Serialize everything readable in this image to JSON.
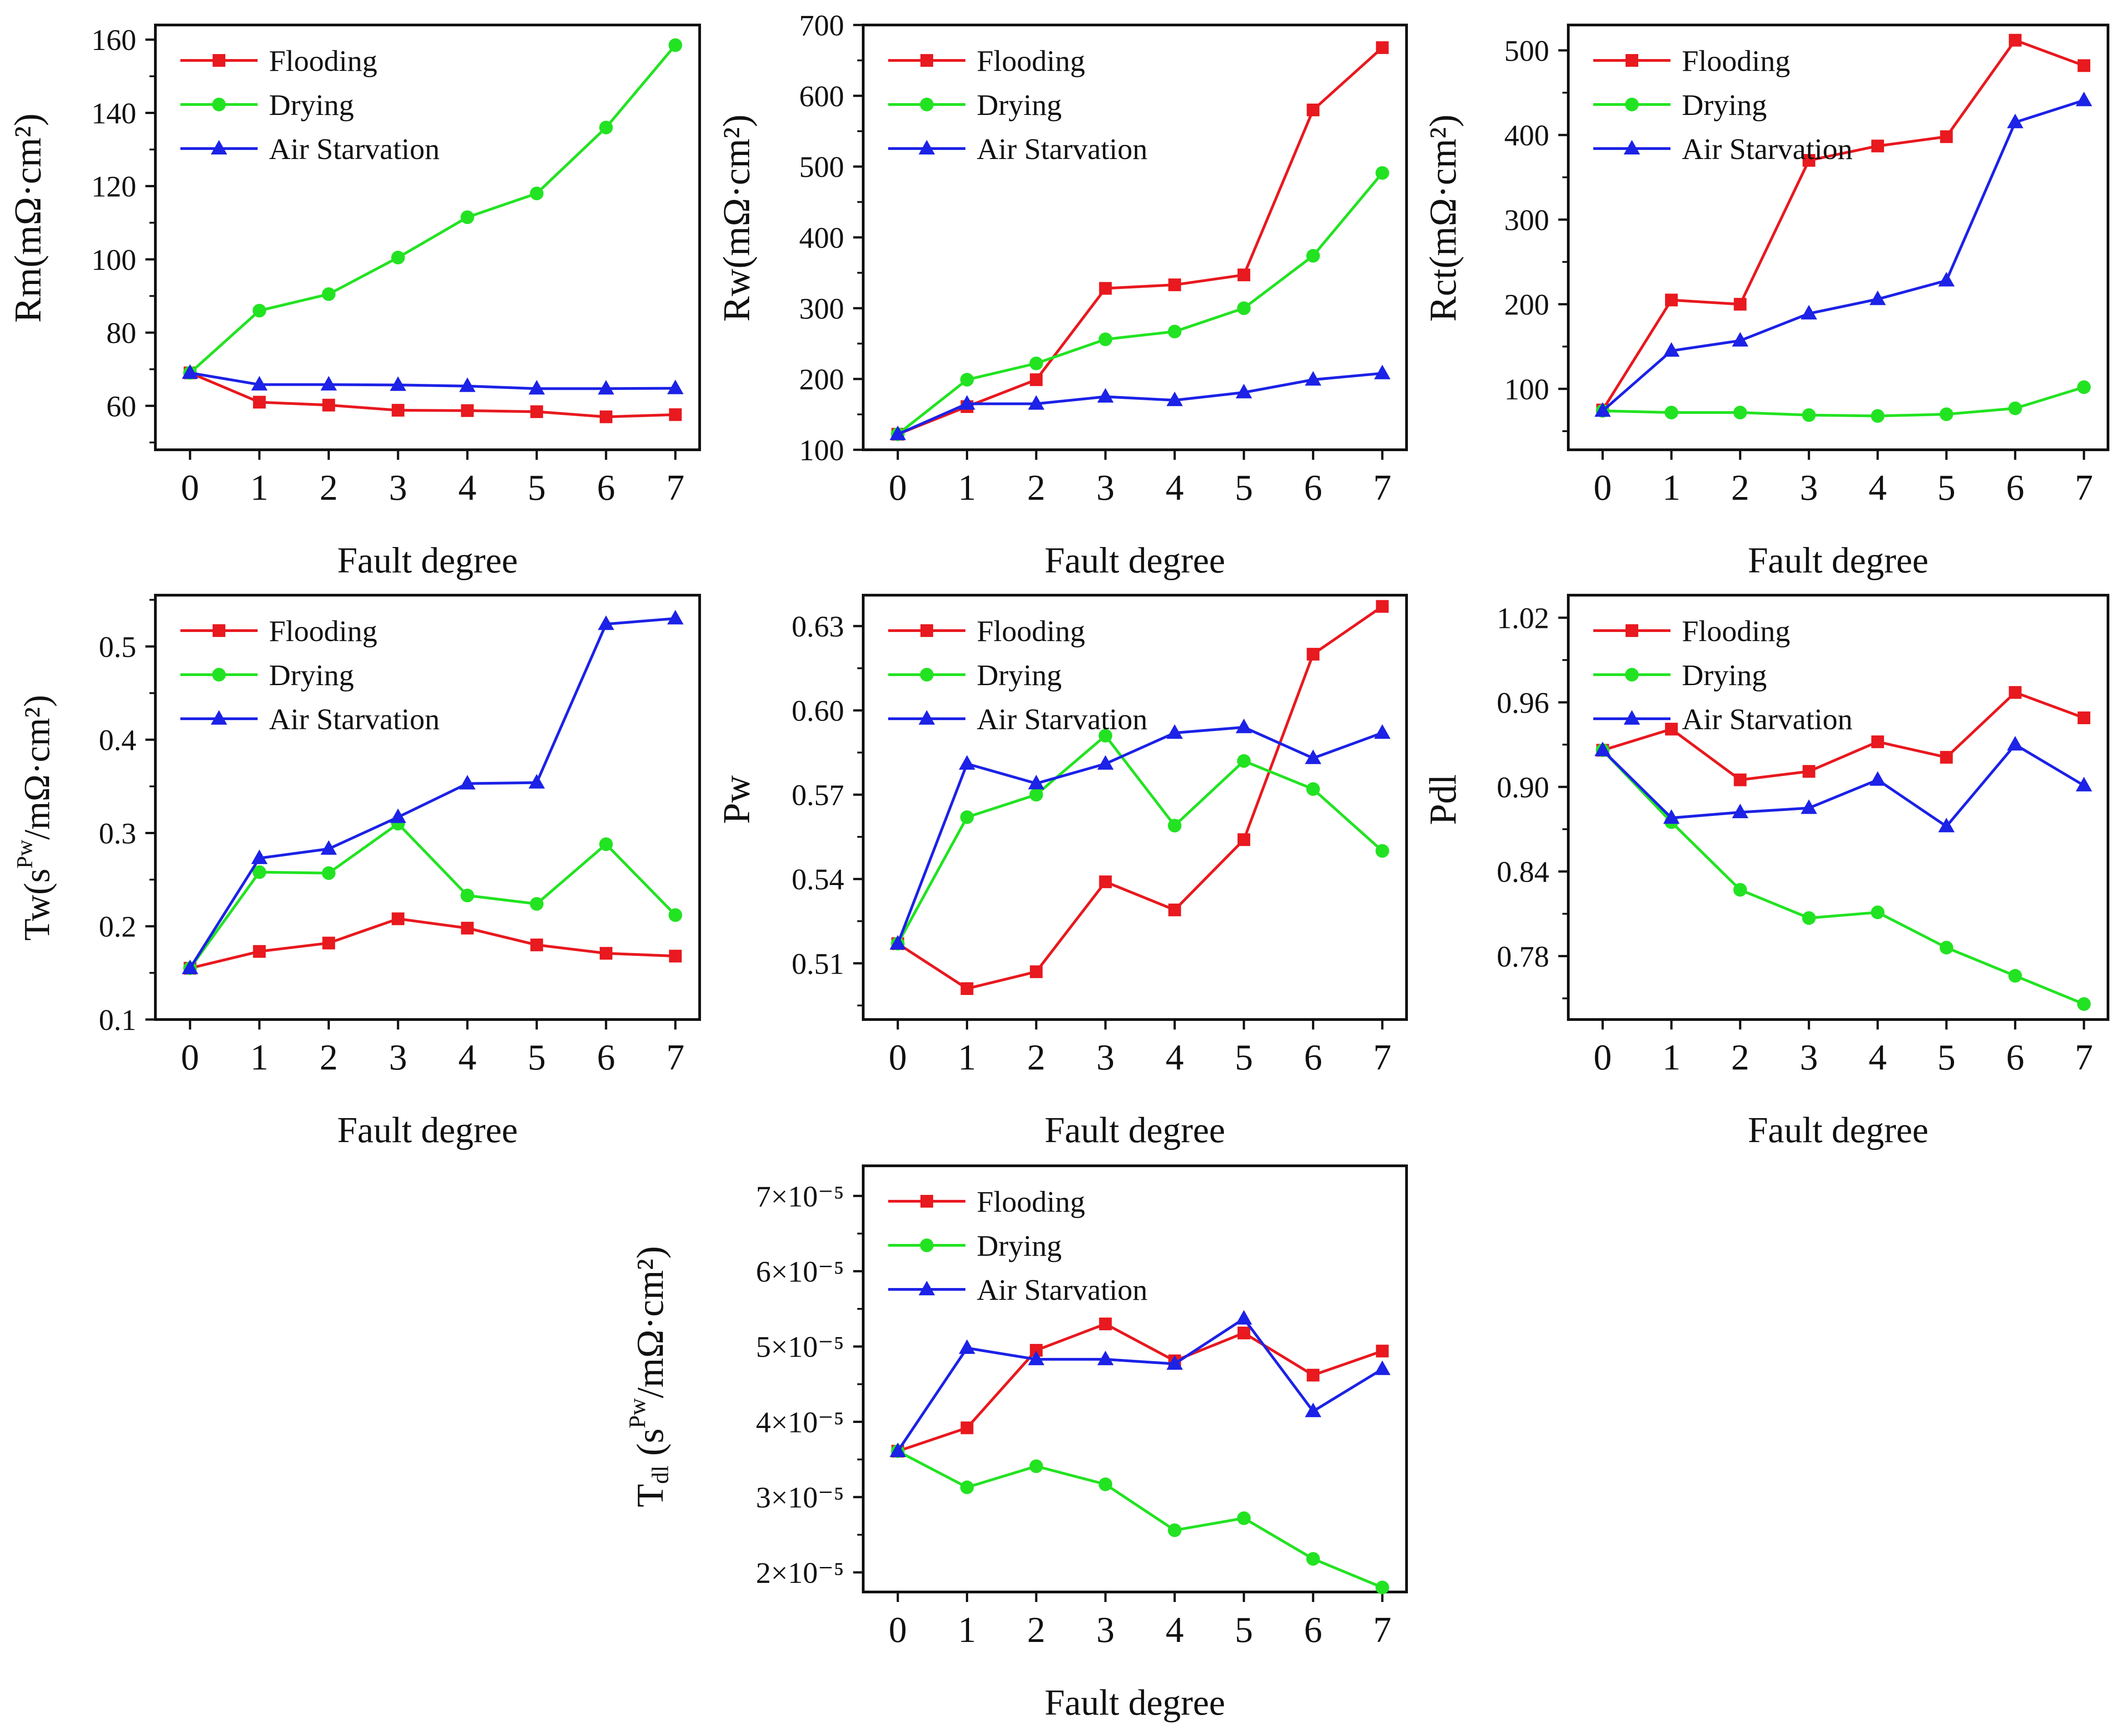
{
  "colors": {
    "flooding": "#e8191f",
    "drying": "#22e322",
    "air_starvation": "#1c22e6"
  },
  "chart_data": [
    {
      "id": "rm",
      "type": "line",
      "ylabel": "Rm(mΩ·cm²)",
      "xlabel": "Fault degree",
      "x": [
        0,
        1,
        2,
        3,
        4,
        5,
        6,
        7
      ],
      "xlim": [
        -0.5,
        7.35
      ],
      "ylim": [
        48,
        164
      ],
      "yticks": [
        60,
        80,
        100,
        120,
        140,
        160
      ],
      "yticklabels": [
        "60",
        "80",
        "100",
        "120",
        "140",
        "160"
      ],
      "legend": "top-left",
      "series": [
        {
          "name": "Flooding",
          "marker": "square",
          "values": [
            69.0,
            61.0,
            60.2,
            58.8,
            58.7,
            58.4,
            57.0,
            57.6
          ]
        },
        {
          "name": "Drying",
          "marker": "circle",
          "values": [
            69.0,
            86.0,
            90.5,
            100.5,
            111.5,
            118.0,
            136.0,
            158.5
          ]
        },
        {
          "name": "Air Starvation",
          "marker": "triangle",
          "values": [
            69.0,
            65.8,
            65.8,
            65.7,
            65.4,
            64.7,
            64.7,
            64.8
          ]
        }
      ]
    },
    {
      "id": "rw",
      "type": "line",
      "ylabel": "Rw(mΩ·cm²)",
      "xlabel": "Fault degree",
      "x": [
        0,
        1,
        2,
        3,
        4,
        5,
        6,
        7
      ],
      "xlim": [
        -0.5,
        7.35
      ],
      "ylim": [
        100,
        700
      ],
      "yticks": [
        100,
        200,
        300,
        400,
        500,
        600,
        700
      ],
      "yticklabels": [
        "100",
        "200",
        "300",
        "400",
        "500",
        "600",
        "700"
      ],
      "legend": "top-left",
      "series": [
        {
          "name": "Flooding",
          "marker": "square",
          "values": [
            122,
            161,
            199,
            328,
            333,
            347,
            580,
            668
          ]
        },
        {
          "name": "Drying",
          "marker": "circle",
          "values": [
            122,
            199,
            222,
            256,
            267,
            300,
            374,
            491
          ]
        },
        {
          "name": "Air Starvation",
          "marker": "triangle",
          "values": [
            122,
            165,
            165,
            175,
            170,
            181,
            199,
            208
          ]
        }
      ]
    },
    {
      "id": "rct",
      "type": "line",
      "ylabel": "Rct(mΩ·cm²)",
      "xlabel": "Fault degree",
      "x": [
        0,
        1,
        2,
        3,
        4,
        5,
        6,
        7
      ],
      "xlim": [
        -0.5,
        7.35
      ],
      "ylim": [
        28,
        530
      ],
      "yticks": [
        100,
        200,
        300,
        400,
        500
      ],
      "yticklabels": [
        "100",
        "200",
        "300",
        "400",
        "500"
      ],
      "legend": "top-left",
      "series": [
        {
          "name": "Flooding",
          "marker": "square",
          "values": [
            75,
            205,
            200,
            370,
            387,
            398,
            512,
            482
          ]
        },
        {
          "name": "Drying",
          "marker": "circle",
          "values": [
            74,
            72,
            72,
            69,
            68,
            70,
            77,
            102
          ]
        },
        {
          "name": "Air Starvation",
          "marker": "triangle",
          "values": [
            74,
            145,
            157,
            189,
            206,
            228,
            415,
            441
          ]
        }
      ]
    },
    {
      "id": "tw",
      "type": "line",
      "ylabel": "Tw(s^Pw/mΩ·cm²)",
      "xlabel": "Fault degree",
      "x": [
        0,
        1,
        2,
        3,
        4,
        5,
        6,
        7
      ],
      "xlim": [
        -0.5,
        7.35
      ],
      "ylim": [
        0.1,
        0.555
      ],
      "yticks": [
        0.1,
        0.2,
        0.3,
        0.4,
        0.5
      ],
      "yticklabels": [
        "0.1",
        "0.2",
        "0.3",
        "0.4",
        "0.5"
      ],
      "legend": "top-left",
      "series": [
        {
          "name": "Flooding",
          "marker": "square",
          "values": [
            0.155,
            0.173,
            0.182,
            0.208,
            0.198,
            0.18,
            0.171,
            0.168
          ]
        },
        {
          "name": "Drying",
          "marker": "circle",
          "values": [
            0.155,
            0.258,
            0.257,
            0.31,
            0.233,
            0.224,
            0.288,
            0.212
          ]
        },
        {
          "name": "Air Starvation",
          "marker": "triangle",
          "values": [
            0.155,
            0.273,
            0.283,
            0.317,
            0.353,
            0.354,
            0.524,
            0.53
          ]
        }
      ]
    },
    {
      "id": "pw",
      "type": "line",
      "ylabel": "Pw",
      "xlabel": "Fault degree",
      "x": [
        0,
        1,
        2,
        3,
        4,
        5,
        6,
        7
      ],
      "xlim": [
        -0.5,
        7.35
      ],
      "ylim": [
        0.49,
        0.641
      ],
      "yticks": [
        0.51,
        0.54,
        0.57,
        0.6,
        0.63
      ],
      "yticklabels": [
        "0.51",
        "0.54",
        "0.57",
        "0.60",
        "0.63"
      ],
      "legend": "top-left",
      "series": [
        {
          "name": "Flooding",
          "marker": "square",
          "values": [
            0.517,
            0.501,
            0.507,
            0.539,
            0.529,
            0.554,
            0.62,
            0.637
          ]
        },
        {
          "name": "Drying",
          "marker": "circle",
          "values": [
            0.517,
            0.562,
            0.57,
            0.591,
            0.559,
            0.582,
            0.572,
            0.55
          ]
        },
        {
          "name": "Air Starvation",
          "marker": "triangle",
          "values": [
            0.517,
            0.581,
            0.574,
            0.581,
            0.592,
            0.594,
            0.583,
            0.592
          ]
        }
      ]
    },
    {
      "id": "pdl",
      "type": "line",
      "ylabel": "Pdl",
      "xlabel": "Fault degree",
      "x": [
        0,
        1,
        2,
        3,
        4,
        5,
        6,
        7
      ],
      "xlim": [
        -0.5,
        7.35
      ],
      "ylim": [
        0.735,
        1.036
      ],
      "yticks": [
        0.78,
        0.84,
        0.9,
        0.96,
        1.02
      ],
      "yticklabels": [
        "0.78",
        "0.84",
        "0.90",
        "0.96",
        "1.02"
      ],
      "legend": "top-left",
      "series": [
        {
          "name": "Flooding",
          "marker": "square",
          "values": [
            0.926,
            0.941,
            0.905,
            0.911,
            0.932,
            0.921,
            0.967,
            0.949
          ]
        },
        {
          "name": "Drying",
          "marker": "circle",
          "values": [
            0.926,
            0.875,
            0.827,
            0.807,
            0.811,
            0.786,
            0.766,
            0.746
          ]
        },
        {
          "name": "Air Starvation",
          "marker": "triangle",
          "values": [
            0.926,
            0.878,
            0.882,
            0.885,
            0.905,
            0.872,
            0.93,
            0.901
          ]
        }
      ]
    },
    {
      "id": "tdl",
      "type": "line",
      "ylabel": "Tdl (s^Pw/mΩ·cm²)",
      "xlabel": "Fault degree",
      "x": [
        0,
        1,
        2,
        3,
        4,
        5,
        6,
        7
      ],
      "xlim": [
        -0.5,
        7.35
      ],
      "ylim": [
        1.74e-05,
        7.4e-05
      ],
      "yticks": [
        2e-05,
        3e-05,
        4e-05,
        5e-05,
        6e-05,
        7e-05
      ],
      "yticklabels": [
        "2×10⁻⁵",
        "3×10⁻⁵",
        "4×10⁻⁵",
        "5×10⁻⁵",
        "6×10⁻⁵",
        "7×10⁻⁵"
      ],
      "legend": "top-left",
      "series": [
        {
          "name": "Flooding",
          "marker": "square",
          "values": [
            3.61e-05,
            3.92e-05,
            4.95e-05,
            5.3e-05,
            4.81e-05,
            5.18e-05,
            4.62e-05,
            4.94e-05
          ]
        },
        {
          "name": "Drying",
          "marker": "circle",
          "values": [
            3.61e-05,
            3.13e-05,
            3.41e-05,
            3.17e-05,
            2.56e-05,
            2.72e-05,
            2.18e-05,
            1.8e-05
          ]
        },
        {
          "name": "Air Starvation",
          "marker": "triangle",
          "values": [
            3.61e-05,
            4.98e-05,
            4.83e-05,
            4.83e-05,
            4.77e-05,
            5.37e-05,
            4.14e-05,
            4.7e-05
          ]
        }
      ]
    }
  ]
}
